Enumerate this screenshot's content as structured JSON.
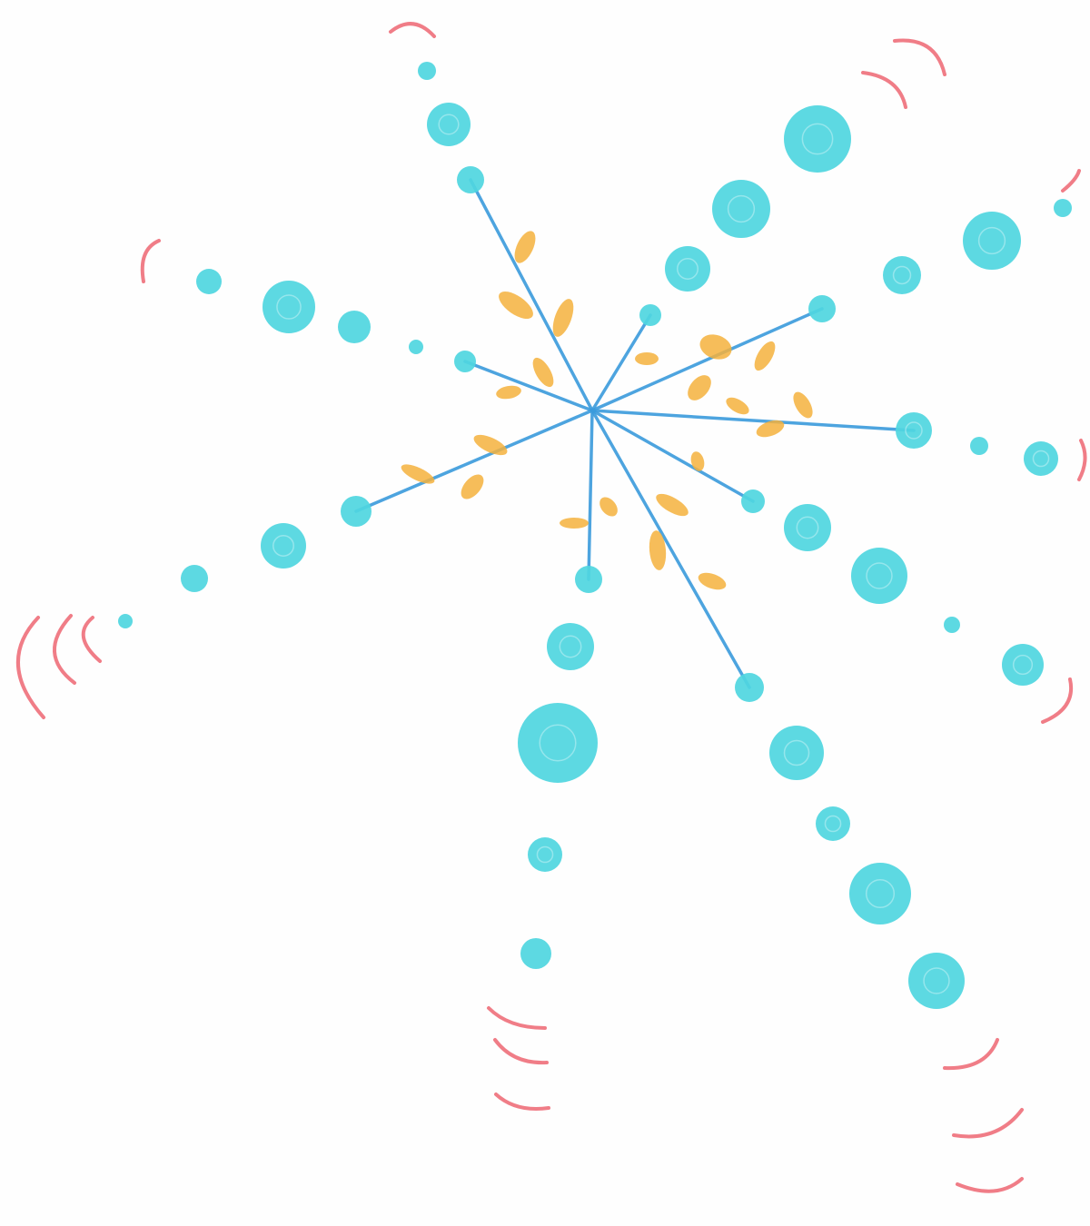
{
  "artwork": {
    "subject": "crayon-drawing",
    "palette": {
      "paper": "#fefefe",
      "dot": "#4fd6df",
      "spoke": "#3a9bdc",
      "spark": "#f5b13d",
      "arc": "#ee6f7a"
    }
  }
}
